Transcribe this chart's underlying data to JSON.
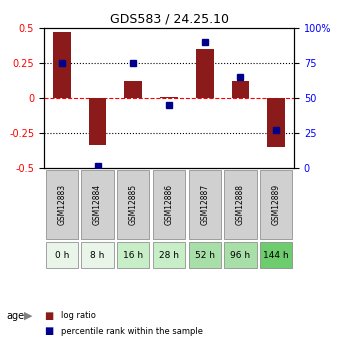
{
  "title": "GDS583 / 24.25.10",
  "samples": [
    "GSM12883",
    "GSM12884",
    "GSM12885",
    "GSM12886",
    "GSM12887",
    "GSM12888",
    "GSM12889"
  ],
  "ages": [
    "0 h",
    "8 h",
    "16 h",
    "28 h",
    "52 h",
    "96 h",
    "144 h"
  ],
  "log_ratio": [
    0.47,
    -0.33,
    0.12,
    0.01,
    0.35,
    0.12,
    -0.35
  ],
  "percentile": [
    75,
    2,
    75,
    45,
    90,
    65,
    27
  ],
  "bar_color": "#8B1A1A",
  "dot_color": "#00008B",
  "ylim_left": [
    -0.5,
    0.5
  ],
  "ylim_right": [
    0,
    100
  ],
  "yticks_left": [
    -0.5,
    -0.25,
    0,
    0.25,
    0.5
  ],
  "yticks_right": [
    0,
    25,
    50,
    75,
    100
  ],
  "hline_dotted": [
    -0.25,
    0.25
  ],
  "hline_red": 0,
  "age_colors": [
    "#e8f5e8",
    "#e8f5e8",
    "#c8eec8",
    "#c8eec8",
    "#a8dfa8",
    "#a8dfa8",
    "#6dcc6d"
  ],
  "legend_labels": [
    "log ratio",
    "percentile rank within the sample"
  ],
  "legend_colors": [
    "#8B1A1A",
    "#00008B"
  ]
}
